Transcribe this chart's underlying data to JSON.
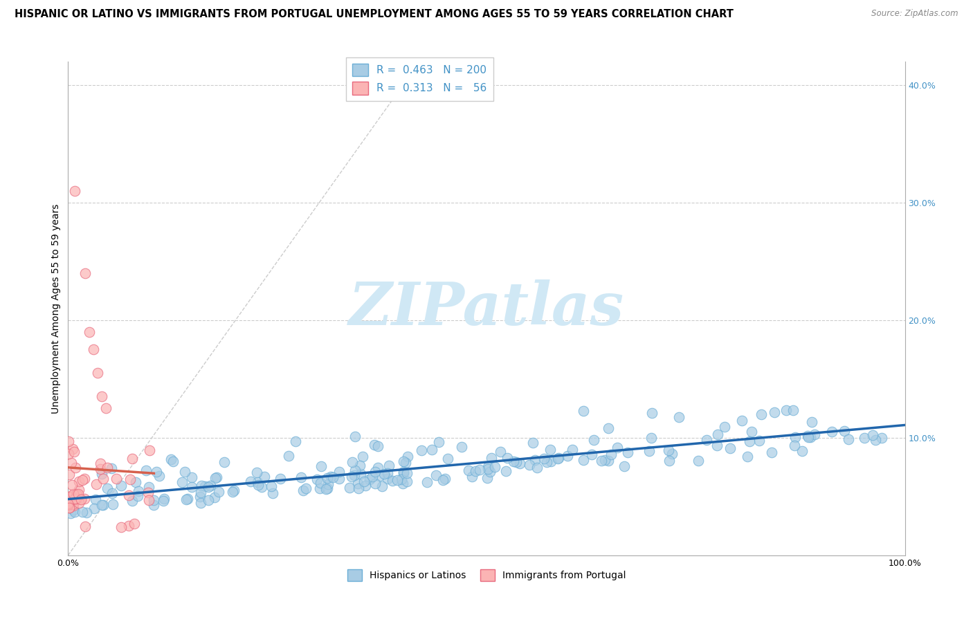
{
  "title": "HISPANIC OR LATINO VS IMMIGRANTS FROM PORTUGAL UNEMPLOYMENT AMONG AGES 55 TO 59 YEARS CORRELATION CHART",
  "source": "Source: ZipAtlas.com",
  "ylabel": "Unemployment Among Ages 55 to 59 years",
  "xlim": [
    0,
    1.0
  ],
  "ylim": [
    0,
    0.42
  ],
  "xtick_vals": [
    0.0,
    0.1,
    0.2,
    0.3,
    0.4,
    0.5,
    0.6,
    0.7,
    0.8,
    0.9,
    1.0
  ],
  "xticklabels": [
    "0.0%",
    "",
    "",
    "",
    "",
    "",
    "",
    "",
    "",
    "",
    "100.0%"
  ],
  "ytick_vals": [
    0.0,
    0.1,
    0.2,
    0.3,
    0.4
  ],
  "yticklabels_left": [
    "",
    "",
    "",
    "",
    ""
  ],
  "yticklabels_right": [
    "",
    "10.0%",
    "20.0%",
    "30.0%",
    "40.0%"
  ],
  "blue_R": 0.463,
  "blue_N": 200,
  "pink_R": 0.313,
  "pink_N": 56,
  "blue_color": "#a8cce4",
  "blue_edge_color": "#6baed6",
  "pink_color": "#fbb4b4",
  "pink_edge_color": "#e8697d",
  "blue_line_color": "#2166ac",
  "pink_line_color": "#d6604d",
  "diag_line_color": "#cccccc",
  "grid_color": "#cccccc",
  "watermark_color": "#d0e8f5",
  "legend_blue_label": "Hispanics or Latinos",
  "legend_pink_label": "Immigrants from Portugal",
  "background_color": "#ffffff",
  "title_fontsize": 10.5,
  "axis_fontsize": 10,
  "tick_fontsize": 9,
  "right_tick_color": "#4292c6"
}
